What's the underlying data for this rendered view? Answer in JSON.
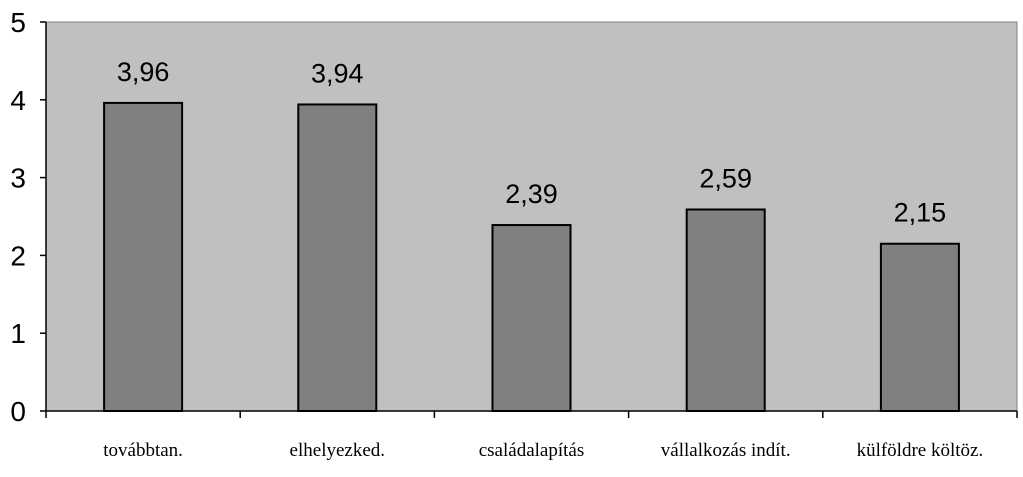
{
  "chart_data": {
    "type": "bar",
    "categories": [
      "továbbtan.",
      "elhelyezked.",
      "családalapítás",
      "vállalkozás indít.",
      "külföldre költöz."
    ],
    "values": [
      3.96,
      3.94,
      2.39,
      2.59,
      2.15
    ],
    "value_labels": [
      "3,96",
      "3,94",
      "2,39",
      "2,59",
      "2,15"
    ],
    "yticks": [
      0,
      1,
      2,
      3,
      4,
      5
    ],
    "ylim": [
      0,
      5
    ],
    "title": "",
    "xlabel": "",
    "ylabel": "",
    "grid": false,
    "legend": "none",
    "colors": {
      "plot_background": "#c0c0c0",
      "bar_fill": "#808080",
      "bar_stroke": "#000000",
      "axis": "#000000"
    }
  }
}
